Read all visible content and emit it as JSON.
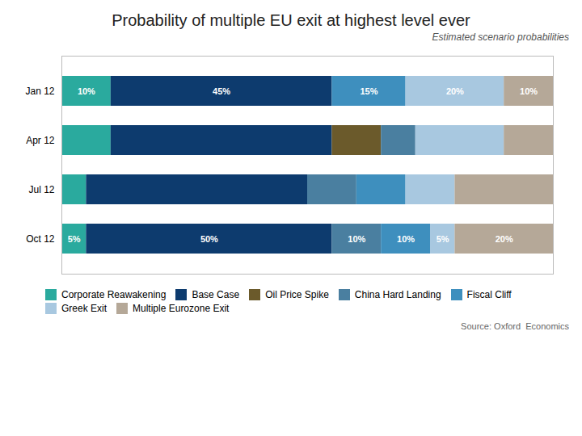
{
  "chart_data": {
    "type": "bar",
    "orientation": "horizontal",
    "stacked": true,
    "title": "Probability of multiple EU exit at highest level ever",
    "subtitle": "Estimated scenario probabilities",
    "source": "Source: Oxford  Economics",
    "categories": [
      "Jan 12",
      "Apr 12",
      "Jul 12",
      "Oct 12"
    ],
    "series": [
      {
        "name": "Corporate Reawakening",
        "color": "#2aaa9e",
        "values": [
          10,
          10,
          5,
          5
        ],
        "value_labels": [
          "10%",
          null,
          null,
          "5%"
        ]
      },
      {
        "name": "Base Case",
        "color": "#0d3b6e",
        "values": [
          45,
          45,
          45,
          50
        ],
        "value_labels": [
          "45%",
          null,
          null,
          "50%"
        ]
      },
      {
        "name": "Oil Price Spike",
        "color": "#6b5a2b",
        "values": [
          0,
          10,
          0,
          0
        ],
        "value_labels": [
          null,
          null,
          null,
          null
        ]
      },
      {
        "name": "China Hard Landing",
        "color": "#4a7fa0",
        "values": [
          0,
          7,
          10,
          10
        ],
        "value_labels": [
          null,
          null,
          null,
          "10%"
        ]
      },
      {
        "name": "Fiscal Cliff",
        "color": "#3e8fbe",
        "values": [
          15,
          0,
          10,
          10
        ],
        "value_labels": [
          "15%",
          null,
          null,
          "10%"
        ]
      },
      {
        "name": "Greek Exit",
        "color": "#a8c8e0",
        "values": [
          20,
          18,
          10,
          5
        ],
        "value_labels": [
          "20%",
          null,
          null,
          "5%"
        ]
      },
      {
        "name": "Multiple Eurozone Exit",
        "color": "#b5a898",
        "values": [
          10,
          10,
          20,
          20
        ],
        "value_labels": [
          "10%",
          null,
          null,
          "20%"
        ]
      }
    ],
    "xlim": [
      0,
      100
    ],
    "tick_labels": "y"
  }
}
